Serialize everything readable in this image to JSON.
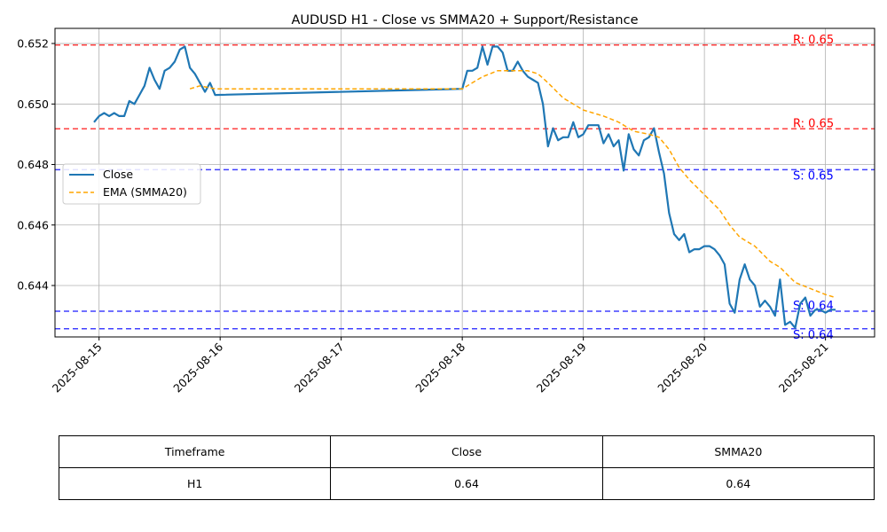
{
  "chart_data": {
    "type": "line",
    "title": "AUDUSD H1 - Close vs SMMA20 + Support/Resistance",
    "xlabel": "",
    "ylabel": "",
    "x_ticks": [
      "2025-08-15",
      "2025-08-16",
      "2025-08-17",
      "2025-08-18",
      "2025-08-19",
      "2025-08-20",
      "2025-08-21"
    ],
    "y_ticks": [
      "0.644",
      "0.646",
      "0.648",
      "0.650",
      "0.652"
    ],
    "ylim": [
      0.6423,
      0.6525
    ],
    "grid": true,
    "legend_position": "center-left",
    "series": [
      {
        "name": "Close",
        "color": "#1f77b4",
        "style": "solid",
        "points": [
          [
            "2025-08-14T23:00",
            0.6494
          ],
          [
            "2025-08-15T00:00",
            0.6496
          ],
          [
            "2025-08-15T01:00",
            0.6497
          ],
          [
            "2025-08-15T02:00",
            0.6496
          ],
          [
            "2025-08-15T03:00",
            0.6497
          ],
          [
            "2025-08-15T04:00",
            0.6496
          ],
          [
            "2025-08-15T05:00",
            0.6496
          ],
          [
            "2025-08-15T06:00",
            0.6501
          ],
          [
            "2025-08-15T07:00",
            0.65
          ],
          [
            "2025-08-15T08:00",
            0.6503
          ],
          [
            "2025-08-15T09:00",
            0.6506
          ],
          [
            "2025-08-15T10:00",
            0.6512
          ],
          [
            "2025-08-15T11:00",
            0.6508
          ],
          [
            "2025-08-15T12:00",
            0.6505
          ],
          [
            "2025-08-15T13:00",
            0.6511
          ],
          [
            "2025-08-15T14:00",
            0.6512
          ],
          [
            "2025-08-15T15:00",
            0.6514
          ],
          [
            "2025-08-15T16:00",
            0.6518
          ],
          [
            "2025-08-15T17:00",
            0.6519
          ],
          [
            "2025-08-15T18:00",
            0.6512
          ],
          [
            "2025-08-15T19:00",
            0.651
          ],
          [
            "2025-08-15T20:00",
            0.6507
          ],
          [
            "2025-08-15T21:00",
            0.6504
          ],
          [
            "2025-08-15T22:00",
            0.6507
          ],
          [
            "2025-08-15T23:00",
            0.6503
          ],
          [
            "2025-08-18T00:00",
            0.6505
          ],
          [
            "2025-08-18T01:00",
            0.6511
          ],
          [
            "2025-08-18T02:00",
            0.6511
          ],
          [
            "2025-08-18T03:00",
            0.6512
          ],
          [
            "2025-08-18T04:00",
            0.6519
          ],
          [
            "2025-08-18T05:00",
            0.6513
          ],
          [
            "2025-08-18T06:00",
            0.6519
          ],
          [
            "2025-08-18T07:00",
            0.6519
          ],
          [
            "2025-08-18T08:00",
            0.6517
          ],
          [
            "2025-08-18T09:00",
            0.6511
          ],
          [
            "2025-08-18T10:00",
            0.6511
          ],
          [
            "2025-08-18T11:00",
            0.6514
          ],
          [
            "2025-08-18T12:00",
            0.6511
          ],
          [
            "2025-08-18T13:00",
            0.6509
          ],
          [
            "2025-08-18T14:00",
            0.6508
          ],
          [
            "2025-08-18T15:00",
            0.6507
          ],
          [
            "2025-08-18T16:00",
            0.65
          ],
          [
            "2025-08-18T17:00",
            0.6486
          ],
          [
            "2025-08-18T18:00",
            0.6492
          ],
          [
            "2025-08-18T19:00",
            0.6488
          ],
          [
            "2025-08-18T20:00",
            0.6489
          ],
          [
            "2025-08-18T21:00",
            0.6489
          ],
          [
            "2025-08-18T22:00",
            0.6494
          ],
          [
            "2025-08-18T23:00",
            0.6489
          ],
          [
            "2025-08-19T00:00",
            0.649
          ],
          [
            "2025-08-19T01:00",
            0.6493
          ],
          [
            "2025-08-19T02:00",
            0.6493
          ],
          [
            "2025-08-19T03:00",
            0.6493
          ],
          [
            "2025-08-19T04:00",
            0.6487
          ],
          [
            "2025-08-19T05:00",
            0.649
          ],
          [
            "2025-08-19T06:00",
            0.6486
          ],
          [
            "2025-08-19T07:00",
            0.6488
          ],
          [
            "2025-08-19T08:00",
            0.6478
          ],
          [
            "2025-08-19T09:00",
            0.649
          ],
          [
            "2025-08-19T10:00",
            0.6485
          ],
          [
            "2025-08-19T11:00",
            0.6483
          ],
          [
            "2025-08-19T12:00",
            0.6488
          ],
          [
            "2025-08-19T13:00",
            0.6489
          ],
          [
            "2025-08-19T14:00",
            0.6492
          ],
          [
            "2025-08-19T15:00",
            0.6484
          ],
          [
            "2025-08-19T16:00",
            0.6477
          ],
          [
            "2025-08-19T17:00",
            0.6464
          ],
          [
            "2025-08-19T18:00",
            0.6457
          ],
          [
            "2025-08-19T19:00",
            0.6455
          ],
          [
            "2025-08-19T20:00",
            0.6457
          ],
          [
            "2025-08-19T21:00",
            0.6451
          ],
          [
            "2025-08-19T22:00",
            0.6452
          ],
          [
            "2025-08-19T23:00",
            0.6452
          ],
          [
            "2025-08-20T00:00",
            0.6453
          ],
          [
            "2025-08-20T01:00",
            0.6453
          ],
          [
            "2025-08-20T02:00",
            0.6452
          ],
          [
            "2025-08-20T03:00",
            0.645
          ],
          [
            "2025-08-20T04:00",
            0.6447
          ],
          [
            "2025-08-20T05:00",
            0.6434
          ],
          [
            "2025-08-20T06:00",
            0.6431
          ],
          [
            "2025-08-20T07:00",
            0.6442
          ],
          [
            "2025-08-20T08:00",
            0.6447
          ],
          [
            "2025-08-20T09:00",
            0.6442
          ],
          [
            "2025-08-20T10:00",
            0.644
          ],
          [
            "2025-08-20T11:00",
            0.6433
          ],
          [
            "2025-08-20T12:00",
            0.6435
          ],
          [
            "2025-08-20T13:00",
            0.6433
          ],
          [
            "2025-08-20T14:00",
            0.643
          ],
          [
            "2025-08-20T15:00",
            0.6442
          ],
          [
            "2025-08-20T16:00",
            0.6427
          ],
          [
            "2025-08-20T17:00",
            0.6428
          ],
          [
            "2025-08-20T18:00",
            0.6426
          ],
          [
            "2025-08-20T19:00",
            0.6434
          ],
          [
            "2025-08-20T20:00",
            0.6436
          ],
          [
            "2025-08-20T21:00",
            0.643
          ],
          [
            "2025-08-20T22:00",
            0.6432
          ],
          [
            "2025-08-20T23:00",
            0.6432
          ],
          [
            "2025-08-21T00:00",
            0.6431
          ],
          [
            "2025-08-21T01:00",
            0.6432
          ],
          [
            "2025-08-21T02:00",
            0.6432
          ]
        ]
      },
      {
        "name": "EMA (SMMA20)",
        "color": "#ffa500",
        "style": "dashed",
        "points": [
          [
            "2025-08-15T18:00",
            0.6505
          ],
          [
            "2025-08-15T20:00",
            0.6506
          ],
          [
            "2025-08-15T23:00",
            0.6505
          ],
          [
            "2025-08-18T00:00",
            0.6505
          ],
          [
            "2025-08-18T02:00",
            0.6507
          ],
          [
            "2025-08-18T04:00",
            0.6509
          ],
          [
            "2025-08-18T07:00",
            0.6511
          ],
          [
            "2025-08-18T10:00",
            0.6511
          ],
          [
            "2025-08-18T13:00",
            0.6511
          ],
          [
            "2025-08-18T15:00",
            0.651
          ],
          [
            "2025-08-18T17:00",
            0.6507
          ],
          [
            "2025-08-18T20:00",
            0.6502
          ],
          [
            "2025-08-19T00:00",
            0.6498
          ],
          [
            "2025-08-19T04:00",
            0.6496
          ],
          [
            "2025-08-19T07:00",
            0.6494
          ],
          [
            "2025-08-19T10:00",
            0.6491
          ],
          [
            "2025-08-19T13:00",
            0.649
          ],
          [
            "2025-08-19T15:00",
            0.6489
          ],
          [
            "2025-08-19T17:00",
            0.6485
          ],
          [
            "2025-08-19T19:00",
            0.6479
          ],
          [
            "2025-08-19T21:00",
            0.6475
          ],
          [
            "2025-08-20T00:00",
            0.647
          ],
          [
            "2025-08-20T03:00",
            0.6465
          ],
          [
            "2025-08-20T05:00",
            0.646
          ],
          [
            "2025-08-20T07:00",
            0.6456
          ],
          [
            "2025-08-20T10:00",
            0.6453
          ],
          [
            "2025-08-20T13:00",
            0.6448
          ],
          [
            "2025-08-20T15:00",
            0.6446
          ],
          [
            "2025-08-20T18:00",
            0.6441
          ],
          [
            "2025-08-20T21:00",
            0.6439
          ],
          [
            "2025-08-21T00:00",
            0.6437
          ],
          [
            "2025-08-21T02:00",
            0.6436
          ]
        ]
      }
    ],
    "levels": [
      {
        "kind": "resistance",
        "value": 0.65195,
        "label": "R: 0.65",
        "color": "#ff0000"
      },
      {
        "kind": "resistance",
        "value": 0.64918,
        "label": "R: 0.65",
        "color": "#ff0000"
      },
      {
        "kind": "support",
        "value": 0.64783,
        "label": "S: 0.65",
        "color": "#0000ff"
      },
      {
        "kind": "support",
        "value": 0.64315,
        "label": "S: 0.64",
        "color": "#0000ff"
      },
      {
        "kind": "support",
        "value": 0.64257,
        "label": "S: 0.64",
        "color": "#0000ff"
      }
    ]
  },
  "table": {
    "headers": [
      "Timeframe",
      "Close",
      "SMMA20"
    ],
    "row": [
      "H1",
      "0.64",
      "0.64"
    ]
  }
}
